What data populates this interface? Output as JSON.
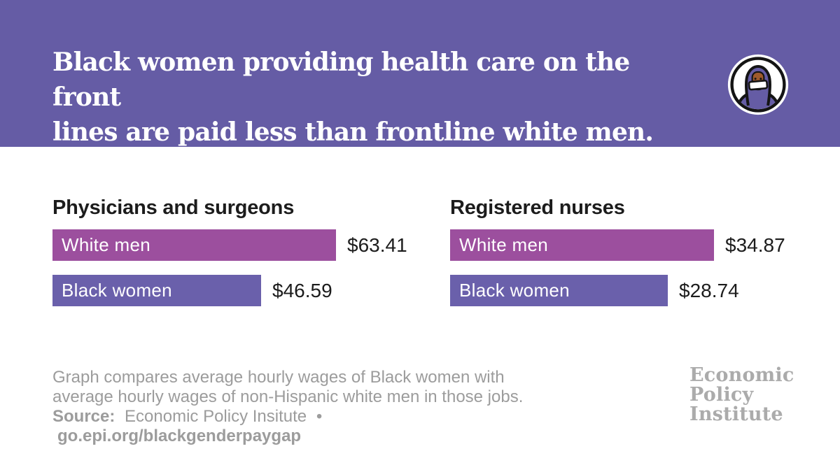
{
  "header": {
    "title_line1": "Black women providing health care on the front",
    "title_line2": "lines are paid less than frontline white men.",
    "icon": "masked-health-worker-icon"
  },
  "chart_data": {
    "type": "bar",
    "orientation": "horizontal",
    "value_unit": "average hourly wage (USD)",
    "panels": [
      {
        "title": "Physicians and surgeons",
        "categories": [
          "White men",
          "Black women"
        ],
        "values": [
          63.41,
          46.59
        ],
        "value_labels": [
          "$63.41",
          "$46.59"
        ]
      },
      {
        "title": "Registered nurses",
        "categories": [
          "White men",
          "Black women"
        ],
        "values": [
          34.87,
          28.74
        ],
        "value_labels": [
          "$34.87",
          "$28.74"
        ]
      }
    ],
    "series_colors": {
      "White men": "#9c4f9e",
      "Black women": "#6a60ab"
    },
    "layout": {
      "grid": false,
      "legend": "category labels inside bars",
      "bars_scaled_to_panel_max": true
    }
  },
  "footer": {
    "note_line1": "Graph compares average hourly wages of Black women with",
    "note_line2": "average hourly wages of non-Hispanic white men in those jobs.",
    "source_label": "Source:",
    "source_name": "Economic Policy Insitute",
    "separator": "•",
    "source_link": "go.epi.org/blackgenderpaygap"
  },
  "logo": {
    "line1": "Economic",
    "line2": "Policy",
    "line3": "Institute"
  },
  "colors": {
    "header_purple": "#655ca5",
    "bar_magenta": "#9c4f9e",
    "bar_purple": "#6a60ab",
    "text_dark": "#1c1c1c",
    "footer_gray": "#9c9c9c",
    "logo_gray": "#ababab",
    "skin_brown": "#9e5a2c"
  }
}
